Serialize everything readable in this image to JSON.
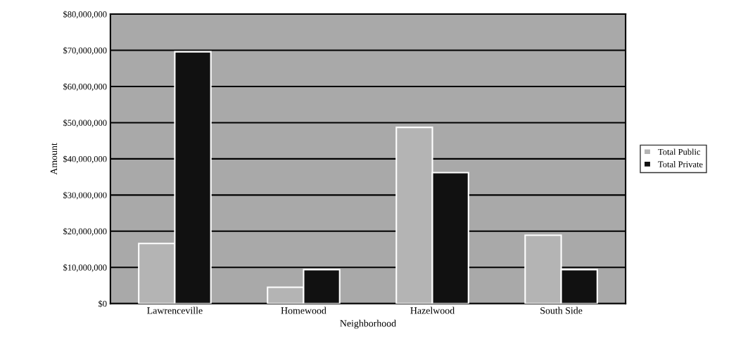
{
  "chart_data": {
    "type": "bar",
    "xlabel": "Neighborhood",
    "ylabel": "Amount",
    "categories": [
      "Lawrenceville",
      "Homewood",
      "Hazelwood",
      "South Side"
    ],
    "series": [
      {
        "name": "Total Public",
        "color": "#b4b4b4",
        "values": [
          16600000,
          4500000,
          48700000,
          18900000
        ]
      },
      {
        "name": "Total Private",
        "color": "#111111",
        "values": [
          69600000,
          9400000,
          36200000,
          9400000
        ]
      }
    ],
    "ylim": [
      0,
      80000000
    ],
    "yticks": [
      {
        "value": 0,
        "label": "$0"
      },
      {
        "value": 10000000,
        "label": "$10,000,000"
      },
      {
        "value": 20000000,
        "label": "$20,000,000"
      },
      {
        "value": 30000000,
        "label": "$30,000,000"
      },
      {
        "value": 40000000,
        "label": "$40,000,000"
      },
      {
        "value": 50000000,
        "label": "$50,000,000"
      },
      {
        "value": 60000000,
        "label": "$60,000,000"
      },
      {
        "value": 70000000,
        "label": "$70,000,000"
      },
      {
        "value": 80000000,
        "label": "$80,000,000"
      }
    ],
    "grid": "y",
    "legend": "right"
  }
}
